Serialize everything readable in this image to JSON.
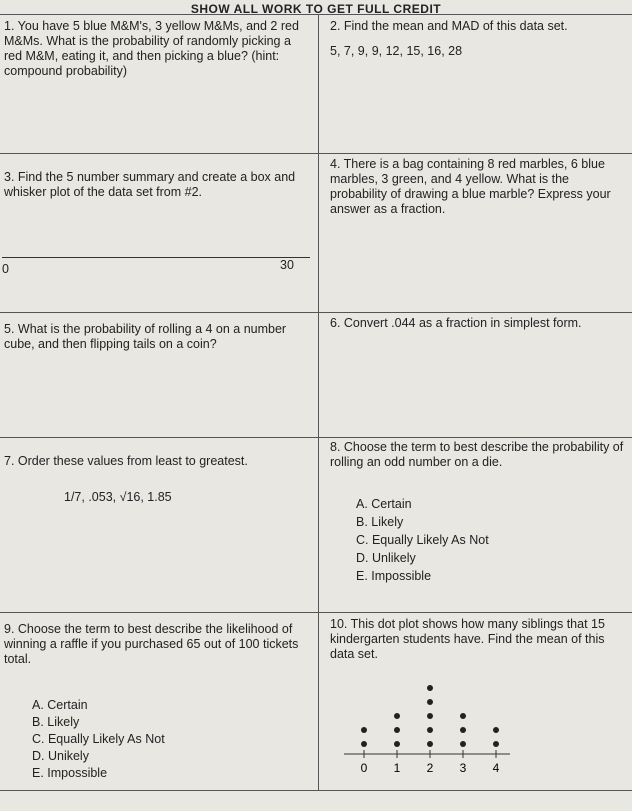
{
  "header": {
    "title": "SHOW ALL WORK TO GET FULL CREDIT"
  },
  "problems": [
    {
      "text": "1. You have 5 blue M&M's, 3 yellow M&Ms, and 2 red M&Ms. What is the probability of randomly picking a red M&M, eating it, and then picking a blue? (hint: compound probability)"
    },
    {
      "text": "2. Find the mean and MAD of this data set.",
      "data": "5, 7, 9, 9, 12, 15, 16, 28"
    },
    {
      "text": "3. Find the 5 number summary and create a box and whisker plot of the data set from #2.",
      "number_line": [
        0,
        30
      ]
    },
    {
      "text": "4. There is a bag containing 8 red marbles, 6 blue marbles, 3 green, and 4 yellow. What is the probability of drawing a blue marble? Express your answer as a fraction."
    },
    {
      "text": "5. What is the probability of rolling a 4 on a number cube, and then flipping tails on a coin?"
    },
    {
      "text": "6. Convert .044 as a fraction in simplest form."
    },
    {
      "text": "7. Order these values from least to greatest.",
      "values": "1/7, .053, √16, 1.85"
    },
    {
      "text": "8. Choose the term to best describe the probability of rolling an odd number on a die.",
      "choices": [
        "A. Certain",
        "B. Likely",
        "C. Equally Likely As Not",
        "D. Unlikely",
        "E. Impossible"
      ]
    },
    {
      "text": "9. Choose the term to best describe the likelihood of winning a raffle if you purchased 65 out of 100 tickets total.",
      "choices": [
        "A. Certain",
        "B. Likely",
        "C. Equally Likely As Not",
        "D. Unikely",
        "E. Impossible"
      ]
    },
    {
      "text": "10. This dot plot shows how many siblings that 15 kindergarten students have. Find the mean of this data set.",
      "dot_plot": {
        "ticks": [
          0,
          1,
          2,
          3,
          4
        ],
        "counts": [
          2,
          3,
          5,
          3,
          2
        ]
      }
    }
  ]
}
